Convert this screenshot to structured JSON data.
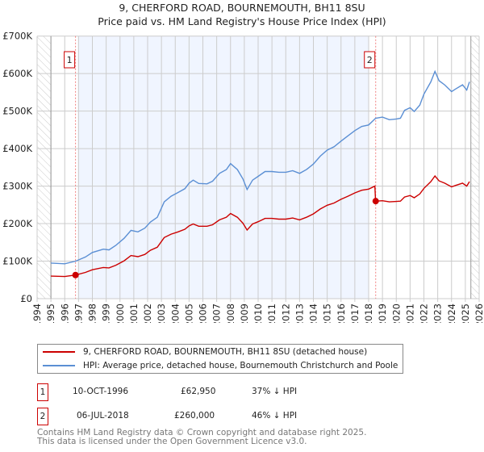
{
  "title": "9, CHERFORD ROAD, BOURNEMOUTH, BH11 8SU",
  "subtitle": "Price paid vs. HM Land Registry's House Price Index (HPI)",
  "chart_data": {
    "type": "line",
    "title": "9, CHERFORD ROAD, BOURNEMOUTH, BH11 8SU",
    "subtitle": "Price paid vs. HM Land Registry's House Price Index (HPI)",
    "xlim": [
      1994,
      2026
    ],
    "ylim": [
      0,
      700000
    ],
    "x_ticks": [
      "1994",
      "1995",
      "1996",
      "1997",
      "1998",
      "1999",
      "2000",
      "2001",
      "2002",
      "2003",
      "2004",
      "2005",
      "2006",
      "2007",
      "2008",
      "2009",
      "2010",
      "2011",
      "2012",
      "2013",
      "2014",
      "2015",
      "2016",
      "2017",
      "2018",
      "2019",
      "2020",
      "2021",
      "2022",
      "2023",
      "2024",
      "2025",
      "2026"
    ],
    "y_ticks": [
      {
        "v": 0,
        "label": "£0"
      },
      {
        "v": 100000,
        "label": "£100K"
      },
      {
        "v": 200000,
        "label": "£200K"
      },
      {
        "v": 300000,
        "label": "£300K"
      },
      {
        "v": 400000,
        "label": "£400K"
      },
      {
        "v": 500000,
        "label": "£500K"
      },
      {
        "v": 600000,
        "label": "£600K"
      },
      {
        "v": 700000,
        "label": "£700K"
      }
    ],
    "grid": true,
    "series": [
      {
        "name": "HPI: Average price, detached house, Bournemouth Christchurch and Poole",
        "color": "#5b8fd4",
        "x": [
          1995.0,
          1996.0,
          1996.8,
          1997.5,
          1998.0,
          1998.8,
          1999.2,
          1999.7,
          2000.3,
          2000.8,
          2001.3,
          2001.8,
          2002.2,
          2002.7,
          2003.2,
          2003.7,
          2004.2,
          2004.7,
          2005.0,
          2005.3,
          2005.7,
          2006.3,
          2006.7,
          2007.2,
          2007.7,
          2008.0,
          2008.5,
          2008.9,
          2009.2,
          2009.6,
          2010.0,
          2010.5,
          2011.0,
          2011.5,
          2012.0,
          2012.5,
          2013.0,
          2013.5,
          2014.0,
          2014.5,
          2015.0,
          2015.5,
          2016.0,
          2016.5,
          2017.0,
          2017.5,
          2018.0,
          2018.5,
          2019.0,
          2019.5,
          2020.0,
          2020.3,
          2020.6,
          2021.0,
          2021.3,
          2021.7,
          2022.0,
          2022.5,
          2022.8,
          2023.1,
          2023.5,
          2024.0,
          2024.3,
          2024.8,
          2025.1,
          2025.3
        ],
        "values": [
          95,
          93,
          100,
          111,
          123,
          132,
          130,
          142,
          161,
          182,
          178,
          188,
          204,
          217,
          258,
          273,
          283,
          293,
          308,
          316,
          307,
          306,
          313,
          334,
          344,
          360,
          344,
          319,
          291,
          316,
          326,
          339,
          339,
          337,
          337,
          341,
          334,
          344,
          359,
          380,
          396,
          405,
          420,
          434,
          448,
          459,
          463,
          481,
          484,
          477,
          479,
          481,
          502,
          509,
          499,
          516,
          545,
          578,
          606,
          581,
          570,
          552,
          559,
          570,
          556,
          578
        ]
      },
      {
        "name": "9, CHERFORD ROAD, BOURNEMOUTH, BH11 8SU (detached house)",
        "color": "#cc0000",
        "x": [
          1995.0,
          1996.0,
          1996.8,
          1997.5,
          1998.0,
          1998.8,
          1999.2,
          1999.7,
          2000.3,
          2000.8,
          2001.3,
          2001.8,
          2002.2,
          2002.7,
          2003.2,
          2003.7,
          2004.2,
          2004.7,
          2005.0,
          2005.3,
          2005.7,
          2006.3,
          2006.7,
          2007.2,
          2007.7,
          2008.0,
          2008.5,
          2008.9,
          2009.2,
          2009.6,
          2010.0,
          2010.5,
          2011.0,
          2011.5,
          2012.0,
          2012.5,
          2013.0,
          2013.5,
          2014.0,
          2014.5,
          2015.0,
          2015.5,
          2016.0,
          2016.5,
          2017.0,
          2017.5,
          2018.0,
          2018.45,
          2018.5,
          2019.0,
          2019.5,
          2020.0,
          2020.3,
          2020.6,
          2021.0,
          2021.3,
          2021.7,
          2022.0,
          2022.5,
          2022.8,
          2023.1,
          2023.5,
          2024.0,
          2024.3,
          2024.8,
          2025.1,
          2025.3
        ],
        "values": [
          60,
          59,
          63,
          70,
          77,
          83,
          82,
          89,
          101,
          115,
          112,
          118,
          129,
          137,
          163,
          172,
          178,
          185,
          194,
          199,
          193,
          193,
          197,
          210,
          217,
          227,
          217,
          201,
          183,
          199,
          205,
          214,
          214,
          212,
          212,
          215,
          210,
          217,
          226,
          239,
          249,
          255,
          265,
          273,
          282,
          289,
          292,
          300,
          260,
          261,
          258,
          259,
          260,
          271,
          275,
          269,
          279,
          294,
          312,
          327,
          314,
          308,
          298,
          302,
          308,
          300,
          312
        ]
      }
    ],
    "value_unit": "thousand GBP",
    "sales": [
      {
        "id": "1",
        "x": 1996.78,
        "value": 62950
      },
      {
        "id": "2",
        "x": 2018.51,
        "value": 260000
      }
    ],
    "shaded_range": [
      1996.95,
      2018.0
    ],
    "hatched_before": 1995,
    "hatched_after": 2025.4,
    "legend_placement": "below"
  },
  "legend": [
    {
      "label": "9, CHERFORD ROAD, BOURNEMOUTH, BH11 8SU (detached house)",
      "color": "#cc0000"
    },
    {
      "label": "HPI: Average price, detached house, Bournemouth Christchurch and Poole",
      "color": "#5b8fd4"
    }
  ],
  "transactions": [
    {
      "num": "1",
      "date": "10-OCT-1996",
      "price": "£62,950",
      "hpi": "37% ↓ HPI"
    },
    {
      "num": "2",
      "date": "06-JUL-2018",
      "price": "£260,000",
      "hpi": "46% ↓ HPI"
    }
  ],
  "footer": [
    "Contains HM Land Registry data © Crown copyright and database right 2025.",
    "This data is licensed under the Open Government Licence v3.0."
  ]
}
